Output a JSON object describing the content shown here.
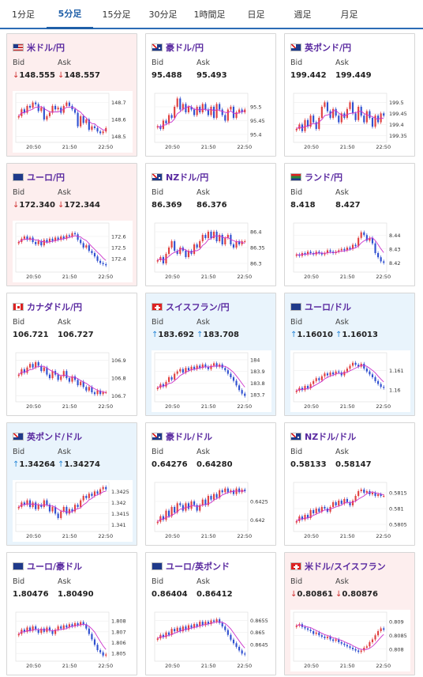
{
  "tabs": [
    {
      "label": "1分足",
      "active": false
    },
    {
      "label": "5分足",
      "active": true
    },
    {
      "label": "15分足",
      "active": false
    },
    {
      "label": "30分足",
      "active": false
    },
    {
      "label": "1時間足",
      "active": false
    },
    {
      "label": "日足",
      "active": false
    },
    {
      "label": "週足",
      "active": false
    },
    {
      "label": "月足",
      "active": false
    }
  ],
  "labels": {
    "bid": "Bid",
    "ask": "Ask"
  },
  "arrows": {
    "down": "↓",
    "up": "↑"
  },
  "colors": {
    "up_candle": "#e04040",
    "down_candle": "#3050d0",
    "ma_line": "#cc33cc",
    "down_bg": "#fdeeee",
    "up_bg": "#e9f4fc",
    "pair_name": "#5a2aa0"
  },
  "pairs": [
    {
      "name": "米ドル/円",
      "flag": "us",
      "trend": "down",
      "bid": "148.555",
      "ask": "148.557",
      "chart_data": {
        "type": "candlestick",
        "x_ticks": [
          "20:50",
          "21:50",
          "22:50"
        ],
        "y_ticks": [
          "148.7",
          "148.6",
          "148.5"
        ],
        "ylim": [
          148.48,
          148.74
        ],
        "closes": [
          148.62,
          148.66,
          148.64,
          148.68,
          148.67,
          148.7,
          148.69,
          148.65,
          148.67,
          148.6,
          148.62,
          148.64,
          148.68,
          148.66,
          148.67,
          148.64,
          148.68,
          148.7,
          148.68,
          148.66,
          148.64,
          148.56,
          148.62,
          148.58,
          148.6,
          148.54,
          148.56,
          148.55,
          148.53,
          148.52,
          148.53,
          148.55
        ]
      }
    },
    {
      "name": "豪ドル/円",
      "flag": "au",
      "trend": "flat",
      "bid": "95.488",
      "ask": "95.493",
      "chart_data": {
        "type": "candlestick",
        "x_ticks": [
          "20:50",
          "21:50",
          "22:50"
        ],
        "y_ticks": [
          "95.5",
          "95.45",
          "95.4"
        ],
        "ylim": [
          95.38,
          95.54
        ],
        "closes": [
          95.43,
          95.42,
          95.45,
          95.44,
          95.47,
          95.46,
          95.5,
          95.53,
          95.49,
          95.51,
          95.48,
          95.5,
          95.49,
          95.47,
          95.5,
          95.48,
          95.51,
          95.49,
          95.47,
          95.5,
          95.46,
          95.51,
          95.49,
          95.47,
          95.45,
          95.49,
          95.5,
          95.46,
          95.48,
          95.49,
          95.48,
          95.49
        ]
      }
    },
    {
      "name": "英ポンド/円",
      "flag": "gb",
      "trend": "flat",
      "bid": "199.442",
      "ask": "199.449",
      "chart_data": {
        "type": "candlestick",
        "x_ticks": [
          "20:50",
          "21:50",
          "22:50"
        ],
        "y_ticks": [
          "199.5",
          "199.45",
          "199.4",
          "199.35"
        ],
        "ylim": [
          199.33,
          199.53
        ],
        "closes": [
          199.38,
          199.4,
          199.37,
          199.42,
          199.39,
          199.44,
          199.41,
          199.38,
          199.43,
          199.48,
          199.5,
          199.46,
          199.43,
          199.47,
          199.44,
          199.41,
          199.45,
          199.43,
          199.47,
          199.5,
          199.45,
          199.42,
          199.48,
          199.44,
          199.41,
          199.46,
          199.43,
          199.39,
          199.44,
          199.41,
          199.45,
          199.44
        ]
      }
    },
    {
      "name": "ユーロ/円",
      "flag": "eu",
      "trend": "down",
      "bid": "172.340",
      "ask": "172.344",
      "chart_data": {
        "type": "candlestick",
        "x_ticks": [
          "20:50",
          "21:50",
          "22:50"
        ],
        "y_ticks": [
          "172.6",
          "172.5",
          "172.4"
        ],
        "ylim": [
          172.3,
          172.7
        ],
        "closes": [
          172.55,
          172.58,
          172.6,
          172.57,
          172.59,
          172.55,
          172.53,
          172.56,
          172.52,
          172.57,
          172.55,
          172.58,
          172.56,
          172.59,
          172.57,
          172.6,
          172.58,
          172.61,
          172.6,
          172.63,
          172.62,
          172.57,
          172.54,
          172.5,
          172.52,
          172.47,
          172.45,
          172.42,
          172.38,
          172.36,
          172.35,
          172.34
        ]
      }
    },
    {
      "name": "NZドル/円",
      "flag": "nz",
      "trend": "flat",
      "bid": "86.369",
      "ask": "86.376",
      "chart_data": {
        "type": "candlestick",
        "x_ticks": [
          "20:50",
          "21:50",
          "22:50"
        ],
        "y_ticks": [
          "86.4",
          "86.35",
          "86.3"
        ],
        "ylim": [
          86.28,
          86.42
        ],
        "closes": [
          86.31,
          86.32,
          86.3,
          86.33,
          86.35,
          86.37,
          86.34,
          86.33,
          86.35,
          86.34,
          86.32,
          86.34,
          86.33,
          86.36,
          86.35,
          86.37,
          86.39,
          86.38,
          86.4,
          86.38,
          86.4,
          86.37,
          86.39,
          86.36,
          86.38,
          86.39,
          86.36,
          86.35,
          86.37,
          86.36,
          86.37,
          86.37
        ]
      }
    },
    {
      "name": "ランド/円",
      "flag": "za",
      "trend": "flat",
      "bid": "8.418",
      "ask": "8.427",
      "chart_data": {
        "type": "candlestick",
        "x_ticks": [
          "20:50",
          "21:50",
          "22:50"
        ],
        "y_ticks": [
          "8.44",
          "8.43",
          "8.42"
        ],
        "ylim": [
          8.415,
          8.447
        ],
        "closes": [
          8.426,
          8.425,
          8.427,
          8.426,
          8.428,
          8.427,
          8.426,
          8.428,
          8.427,
          8.426,
          8.427,
          8.429,
          8.428,
          8.427,
          8.428,
          8.429,
          8.43,
          8.429,
          8.431,
          8.43,
          8.433,
          8.432,
          8.438,
          8.442,
          8.44,
          8.436,
          8.438,
          8.434,
          8.427,
          8.424,
          8.421,
          8.42
        ]
      }
    },
    {
      "name": "カナダドル/円",
      "flag": "ca",
      "trend": "flat",
      "bid": "106.721",
      "ask": "106.727",
      "chart_data": {
        "type": "candlestick",
        "x_ticks": [
          "20:50",
          "21:50",
          "22:50"
        ],
        "y_ticks": [
          "106.9",
          "106.8",
          "106.7"
        ],
        "ylim": [
          106.68,
          106.93
        ],
        "closes": [
          106.82,
          106.85,
          106.83,
          106.86,
          106.88,
          106.86,
          106.89,
          106.87,
          106.84,
          106.86,
          106.82,
          106.8,
          106.84,
          106.82,
          106.79,
          106.81,
          106.84,
          106.8,
          106.78,
          106.81,
          106.79,
          106.76,
          106.78,
          106.75,
          106.73,
          106.75,
          106.72,
          106.71,
          106.73,
          106.71,
          106.72,
          106.72
        ]
      }
    },
    {
      "name": "スイスフラン/円",
      "flag": "ch",
      "trend": "up",
      "bid": "183.692",
      "ask": "183.708",
      "chart_data": {
        "type": "candlestick",
        "x_ticks": [
          "20:50",
          "21:50",
          "22:50"
        ],
        "y_ticks": [
          "184",
          "183.9",
          "183.8",
          "183.7"
        ],
        "ylim": [
          183.66,
          184.04
        ],
        "closes": [
          183.76,
          183.79,
          183.77,
          183.81,
          183.85,
          183.83,
          183.88,
          183.9,
          183.92,
          183.89,
          183.93,
          183.91,
          183.94,
          183.92,
          183.95,
          183.93,
          183.96,
          183.94,
          183.92,
          183.95,
          183.97,
          183.94,
          183.96,
          183.93,
          183.91,
          183.88,
          183.85,
          183.82,
          183.78,
          183.74,
          183.71,
          183.69
        ]
      }
    },
    {
      "name": "ユーロ/ドル",
      "flag": "eu",
      "trend": "up",
      "bid": "1.16010",
      "ask": "1.16013",
      "chart_data": {
        "type": "candlestick",
        "x_ticks": [
          "20:50",
          "21:50",
          "22:50"
        ],
        "y_ticks": [
          "1.161",
          "1.16"
        ],
        "ylim": [
          1.1595,
          1.1618
        ],
        "closes": [
          1.15995,
          1.1601,
          1.15998,
          1.1602,
          1.16008,
          1.1603,
          1.16045,
          1.1606,
          1.1605,
          1.1607,
          1.16085,
          1.16075,
          1.1609,
          1.1608,
          1.16095,
          1.1609,
          1.16075,
          1.16095,
          1.1611,
          1.16125,
          1.1614,
          1.1613,
          1.1612,
          1.16135,
          1.1611,
          1.16095,
          1.1608,
          1.16065,
          1.16045,
          1.1603,
          1.16015,
          1.1601
        ]
      }
    },
    {
      "name": "英ポンド/ドル",
      "flag": "gb",
      "trend": "up",
      "bid": "1.34264",
      "ask": "1.34274",
      "chart_data": {
        "type": "candlestick",
        "x_ticks": [
          "20:50",
          "21:50",
          "22:50"
        ],
        "y_ticks": [
          "1.3425",
          "1.342",
          "1.3415",
          "1.341"
        ],
        "ylim": [
          1.3408,
          1.3428
        ],
        "closes": [
          1.3418,
          1.342,
          1.3419,
          1.3421,
          1.3418,
          1.342,
          1.3417,
          1.3419,
          1.3418,
          1.3421,
          1.3419,
          1.3416,
          1.3418,
          1.3415,
          1.3413,
          1.3416,
          1.3418,
          1.3415,
          1.3417,
          1.3416,
          1.3419,
          1.3418,
          1.3421,
          1.3423,
          1.3422,
          1.3424,
          1.3423,
          1.3425,
          1.3424,
          1.3426,
          1.3427,
          1.3426
        ]
      }
    },
    {
      "name": "豪ドル/ドル",
      "flag": "au",
      "trend": "flat",
      "bid": "0.64276",
      "ask": "0.64280",
      "chart_data": {
        "type": "candlestick",
        "x_ticks": [
          "20:50",
          "21:50",
          "22:50"
        ],
        "y_ticks": [
          "0.6425",
          "0.642"
        ],
        "ylim": [
          0.64175,
          0.64295
        ],
        "closes": [
          0.64195,
          0.6421,
          0.642,
          0.64225,
          0.6421,
          0.64235,
          0.6422,
          0.64245,
          0.6424,
          0.64225,
          0.64245,
          0.6423,
          0.6425,
          0.6424,
          0.64225,
          0.6424,
          0.64255,
          0.6424,
          0.64265,
          0.64255,
          0.6427,
          0.6426,
          0.6428,
          0.64275,
          0.64285,
          0.64275,
          0.6428,
          0.6427,
          0.64285,
          0.64275,
          0.64282,
          0.64278
        ]
      }
    },
    {
      "name": "NZドル/ドル",
      "flag": "nz",
      "trend": "flat",
      "bid": "0.58133",
      "ask": "0.58147",
      "chart_data": {
        "type": "candlestick",
        "x_ticks": [
          "20:50",
          "21:50",
          "22:50"
        ],
        "y_ticks": [
          "0.5815",
          "0.581",
          "0.5805"
        ],
        "ylim": [
          0.58035,
          0.58175
        ],
        "closes": [
          0.5806,
          0.58075,
          0.58065,
          0.5808,
          0.5807,
          0.58095,
          0.58085,
          0.581,
          0.5809,
          0.58105,
          0.581,
          0.5809,
          0.58105,
          0.5812,
          0.5811,
          0.58125,
          0.58115,
          0.5813,
          0.5812,
          0.5811,
          0.58125,
          0.5814,
          0.58155,
          0.5816,
          0.5815,
          0.58155,
          0.58145,
          0.5815,
          0.5814,
          0.58145,
          0.5814,
          0.5814
        ]
      }
    },
    {
      "name": "ユーロ/豪ドル",
      "flag": "eu",
      "trend": "flat",
      "bid": "1.80476",
      "ask": "1.80490",
      "chart_data": {
        "type": "candlestick",
        "x_ticks": [
          "20:50",
          "21:50",
          "22:50"
        ],
        "y_ticks": [
          "1.808",
          "1.807",
          "1.806",
          "1.805"
        ],
        "ylim": [
          1.8045,
          1.8086
        ],
        "closes": [
          1.8068,
          1.8072,
          1.807,
          1.8074,
          1.8071,
          1.8075,
          1.8072,
          1.8069,
          1.8073,
          1.807,
          1.8074,
          1.8071,
          1.8068,
          1.8072,
          1.8075,
          1.8073,
          1.8076,
          1.8074,
          1.8077,
          1.8075,
          1.8078,
          1.8076,
          1.8079,
          1.8077,
          1.8073,
          1.8068,
          1.8063,
          1.8058,
          1.8053,
          1.8051,
          1.8048,
          1.8049
        ]
      }
    },
    {
      "name": "ユーロ/英ポンド",
      "flag": "eu",
      "trend": "flat",
      "bid": "0.86404",
      "ask": "0.86412",
      "chart_data": {
        "type": "candlestick",
        "x_ticks": [
          "20:50",
          "21:50",
          "22:50"
        ],
        "y_ticks": [
          "0.8655",
          "0.865",
          "0.8645"
        ],
        "ylim": [
          0.8639,
          0.86575
        ],
        "closes": [
          0.86475,
          0.8649,
          0.8648,
          0.865,
          0.8649,
          0.86515,
          0.86505,
          0.8652,
          0.86505,
          0.86525,
          0.8651,
          0.8653,
          0.8652,
          0.86535,
          0.86525,
          0.86545,
          0.8653,
          0.86545,
          0.86535,
          0.8655,
          0.86545,
          0.86555,
          0.8654,
          0.86525,
          0.8651,
          0.8649,
          0.8647,
          0.86455,
          0.8644,
          0.86425,
          0.86412,
          0.86408
        ]
      }
    },
    {
      "name": "米ドル/スイスフラン",
      "flag": "ch",
      "trend": "down",
      "bid": "0.80861",
      "ask": "0.80876",
      "chart_data": {
        "type": "candlestick",
        "x_ticks": [
          "20:50",
          "21:50",
          "22:50"
        ],
        "y_ticks": [
          "0.809",
          "0.8085",
          "0.808"
        ],
        "ylim": [
          0.80765,
          0.80925
        ],
        "closes": [
          0.80885,
          0.8089,
          0.8088,
          0.80875,
          0.8087,
          0.80865,
          0.80855,
          0.8086,
          0.8085,
          0.80845,
          0.8084,
          0.80845,
          0.80835,
          0.8083,
          0.80835,
          0.80825,
          0.8082,
          0.80815,
          0.8081,
          0.80805,
          0.808,
          0.80795,
          0.8079,
          0.80795,
          0.80805,
          0.8081,
          0.80825,
          0.80835,
          0.8085,
          0.80865,
          0.80875,
          0.8087
        ]
      }
    }
  ]
}
